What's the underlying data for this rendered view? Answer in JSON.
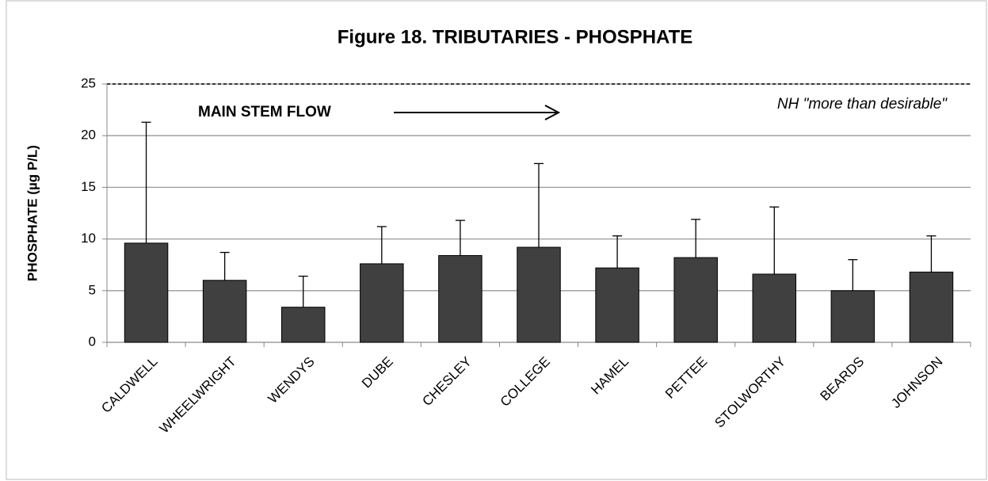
{
  "chart_data": {
    "type": "bar",
    "title": "Figure 18.  TRIBUTARIES - PHOSPHATE",
    "y_label": "PHOSPHATE (µg P/L)",
    "categories": [
      "CALDWELL",
      "WHEELWRIGHT",
      "WENDYS",
      "DUBE",
      "CHESLEY",
      "COLLEGE",
      "HAMEL",
      "PETTEE",
      "STOLWORTHY",
      "BEARDS",
      "JOHNSON"
    ],
    "values": [
      9.6,
      6.0,
      3.4,
      7.6,
      8.4,
      9.2,
      7.2,
      8.2,
      6.6,
      5.0,
      6.8
    ],
    "errors": [
      11.7,
      2.7,
      3.0,
      3.6,
      3.4,
      8.1,
      3.1,
      3.7,
      6.5,
      3.0,
      3.5
    ],
    "color": "#404040",
    "ylim": [
      0,
      25
    ],
    "yticks": [
      0,
      5,
      10,
      15,
      20,
      25
    ],
    "grid": true,
    "threshold": {
      "value": 25,
      "label": "NH \"more than desirable\""
    },
    "annotation": "MAIN STEM FLOW"
  }
}
